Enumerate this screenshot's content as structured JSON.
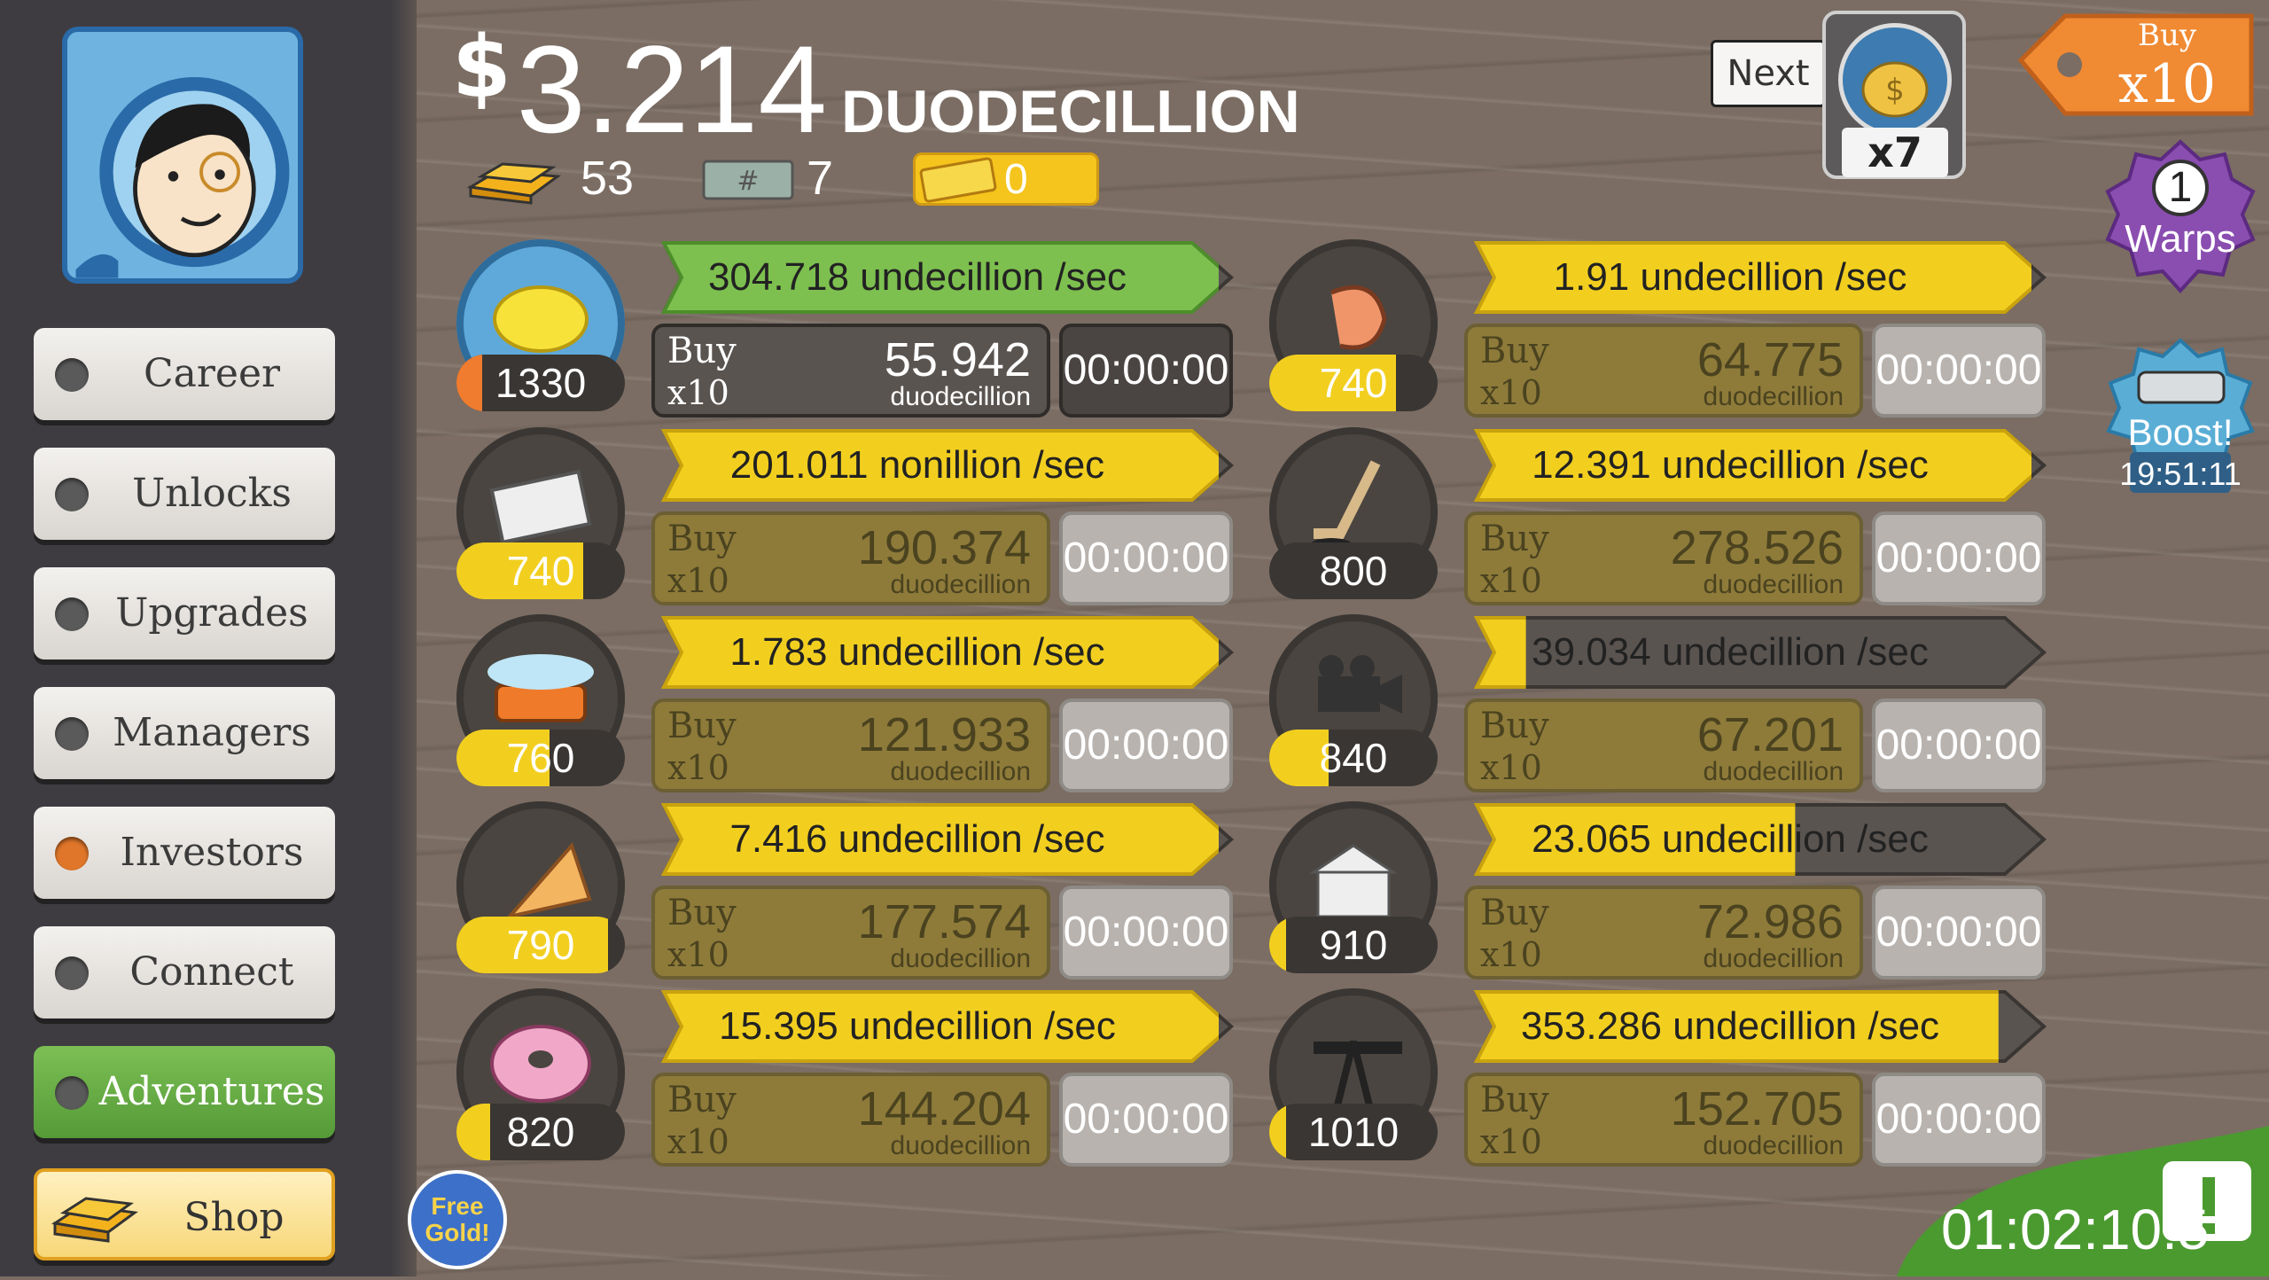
{
  "money": {
    "symbol": "$",
    "amount": "3.214",
    "unit": "DUODECILLION"
  },
  "stats": {
    "gold_bars": "53",
    "mega_tickets": "7",
    "time_warp_tickets": "0"
  },
  "sidebar": {
    "items": [
      {
        "label": "Career"
      },
      {
        "label": "Unlocks"
      },
      {
        "label": "Upgrades"
      },
      {
        "label": "Managers"
      },
      {
        "label": "Investors"
      },
      {
        "label": "Connect"
      },
      {
        "label": "Adventures"
      },
      {
        "label": "Shop"
      }
    ]
  },
  "next": {
    "label": "Next",
    "multiplier": "x7"
  },
  "buy_tag": {
    "line1": "Buy",
    "line2": "x10"
  },
  "warps": {
    "count": "1",
    "label": "Warps"
  },
  "boost": {
    "label": "Boost!",
    "timer": "19:51:11"
  },
  "free_gold": {
    "line1": "Free",
    "line2": "Gold!"
  },
  "tv_timer": "01:02:10:5",
  "buy_label": {
    "line1": "Buy",
    "line2": "x10"
  },
  "businesses": [
    {
      "icon": "lemon-icon",
      "count": "1330",
      "progress": 0.15,
      "rate": "304.718 undecillion /sec",
      "rate_progress": 1.0,
      "green": true,
      "price": "55.942",
      "price_unit": "duodecillion",
      "timer": "00:00:00",
      "affordable": true
    },
    {
      "icon": "shrimp-icon",
      "count": "740",
      "progress": 0.75,
      "rate": "1.91 undecillion /sec",
      "rate_progress": 1.0,
      "green": false,
      "price": "64.775",
      "price_unit": "duodecillion",
      "timer": "00:00:00",
      "affordable": false
    },
    {
      "icon": "newspaper-icon",
      "count": "740",
      "progress": 0.75,
      "rate": "201.011 nonillion /sec",
      "rate_progress": 1.0,
      "green": false,
      "price": "190.374",
      "price_unit": "duodecillion",
      "timer": "00:00:00",
      "affordable": false
    },
    {
      "icon": "hockey-icon",
      "count": "800",
      "progress": 0.0,
      "rate": "12.391 undecillion /sec",
      "rate_progress": 1.0,
      "green": false,
      "price": "278.526",
      "price_unit": "duodecillion",
      "timer": "00:00:00",
      "affordable": false
    },
    {
      "icon": "car-wash-icon",
      "count": "760",
      "progress": 0.55,
      "rate": "1.783 undecillion /sec",
      "rate_progress": 1.0,
      "green": false,
      "price": "121.933",
      "price_unit": "duodecillion",
      "timer": "00:00:00",
      "affordable": false
    },
    {
      "icon": "film-camera-icon",
      "count": "840",
      "progress": 0.35,
      "rate": "39.034 undecillion /sec",
      "rate_progress": 0.08,
      "green": false,
      "price": "67.201",
      "price_unit": "duodecillion",
      "timer": "00:00:00",
      "affordable": false
    },
    {
      "icon": "pizza-icon",
      "count": "790",
      "progress": 0.9,
      "rate": "7.416 undecillion /sec",
      "rate_progress": 1.0,
      "green": false,
      "price": "177.574",
      "price_unit": "duodecillion",
      "timer": "00:00:00",
      "affordable": false
    },
    {
      "icon": "bank-icon",
      "count": "910",
      "progress": 0.1,
      "rate": "23.065 undecillion /sec",
      "rate_progress": 0.57,
      "green": false,
      "price": "72.986",
      "price_unit": "duodecillion",
      "timer": "00:00:00",
      "affordable": false
    },
    {
      "icon": "donut-icon",
      "count": "820",
      "progress": 0.2,
      "rate": "15.395 undecillion /sec",
      "rate_progress": 1.0,
      "green": false,
      "price": "144.204",
      "price_unit": "duodecillion",
      "timer": "00:00:00",
      "affordable": false
    },
    {
      "icon": "oil-rig-icon",
      "count": "1010",
      "progress": 0.1,
      "rate": "353.286 undecillion /sec",
      "rate_progress": 0.94,
      "green": false,
      "price": "152.705",
      "price_unit": "duodecillion",
      "timer": "00:00:00",
      "affordable": false
    }
  ]
}
